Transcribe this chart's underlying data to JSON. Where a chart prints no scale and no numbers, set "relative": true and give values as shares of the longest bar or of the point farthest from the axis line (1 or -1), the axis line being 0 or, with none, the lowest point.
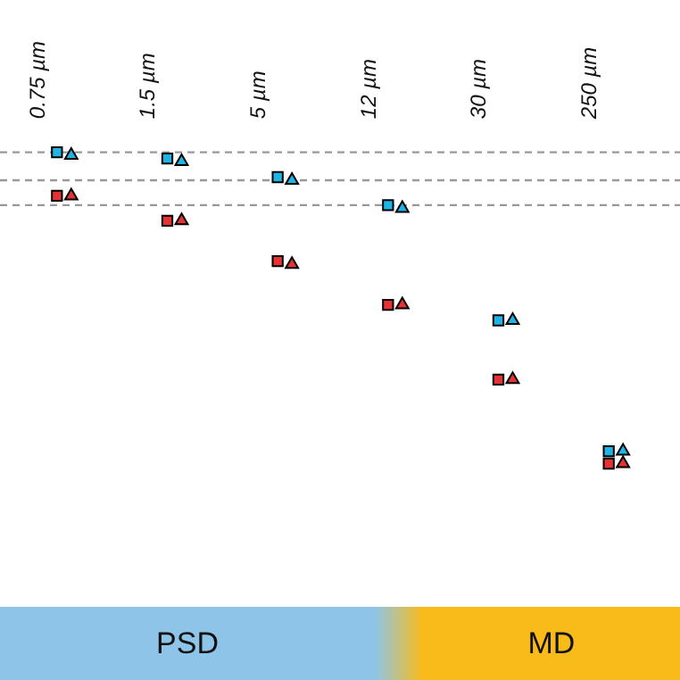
{
  "chart_data": {
    "type": "scatter",
    "relative": true,
    "categories": [
      "0.75 µm",
      "1.5 µm",
      "5 µm",
      "12 µm",
      "30 µm",
      "250 µm"
    ],
    "series": [
      {
        "color": "#1eb4e6",
        "marker": "square",
        "values": [
          1.0,
          0.98,
          0.92,
          0.83,
          0.46,
          0.04
        ]
      },
      {
        "color": "#1eb4e6",
        "marker": "triangle",
        "values": [
          0.99,
          0.97,
          0.91,
          0.82,
          0.46,
          0.04
        ]
      },
      {
        "color": "#e63232",
        "marker": "square",
        "values": [
          0.86,
          0.78,
          0.65,
          0.51,
          0.27,
          0.0
        ]
      },
      {
        "color": "#e63232",
        "marker": "triangle",
        "values": [
          0.86,
          0.78,
          0.64,
          0.51,
          0.27,
          0.0
        ]
      }
    ],
    "ref_lines": [
      {
        "axis": "y",
        "value": 1.0,
        "color": "#999999",
        "line_style": "dashed"
      },
      {
        "axis": "y",
        "value": 0.91,
        "color": "#999999",
        "line_style": "dashed"
      },
      {
        "axis": "y",
        "value": 0.83,
        "color": "#999999",
        "line_style": "dashed"
      }
    ],
    "annotations": [
      "PSD",
      "MD"
    ]
  }
}
